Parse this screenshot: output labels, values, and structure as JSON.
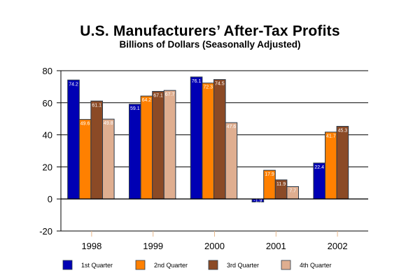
{
  "chart_data": {
    "type": "bar",
    "title": "U.S. Manufacturers’ After-Tax Profits",
    "subtitle": "Billions of Dollars (Seasonally Adjusted)",
    "xlabel": "",
    "ylabel": "",
    "categories": [
      "1998",
      "1999",
      "2000",
      "2001",
      "2002"
    ],
    "ylim": [
      -20,
      80
    ],
    "yticks": [
      80,
      60,
      40,
      20,
      0,
      -20
    ],
    "ytick_labels": [
      "80",
      "60",
      "40",
      "20",
      "0",
      "-20"
    ],
    "grid": true,
    "legend": "bottom",
    "series": [
      {
        "name": "1st Quarter",
        "color": "#0000b4",
        "values": [
          74.2,
          59.1,
          76.1,
          -1.9,
          22.4
        ],
        "labels": [
          "74.2",
          "59.1",
          "76.1",
          "-1.9",
          "22.4"
        ]
      },
      {
        "name": "2nd Quarter",
        "color": "#ff8000",
        "values": [
          49.6,
          64.2,
          72.3,
          17.9,
          41.7
        ],
        "labels": [
          "49.6",
          "64.2",
          "72.3",
          "17.9",
          "41.7"
        ]
      },
      {
        "name": "3rd Quarter",
        "color": "#8b4a26",
        "values": [
          61.1,
          67.1,
          74.5,
          11.9,
          45.3
        ],
        "labels": [
          "61.1",
          "67.1",
          "74.5",
          "11.9",
          "45.3"
        ]
      },
      {
        "name": "4th Quarter",
        "color": "#dfae90",
        "values": [
          49.8,
          67.7,
          47.6,
          7.7,
          null
        ],
        "labels": [
          "49.8",
          "67.7",
          "47.6",
          "7.7",
          ""
        ]
      }
    ]
  }
}
